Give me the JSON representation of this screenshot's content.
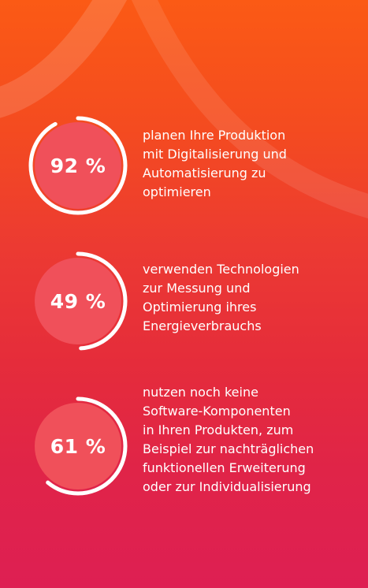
{
  "colors": {
    "ring_fill": "#f0505a",
    "ring_stroke": "#ffffff",
    "text": "#ffffff",
    "background_top": "#fb5a15",
    "background_bottom": "#de1f53"
  },
  "chart_data": {
    "type": "gauge",
    "title": "",
    "unit": "%",
    "items": [
      {
        "value": 92,
        "label": "92 %",
        "lines": [
          "planen Ihre Produktion",
          "mit Digitalisierung und",
          "Automatisierung zu",
          "optimieren"
        ]
      },
      {
        "value": 49,
        "label": "49 %",
        "lines": [
          "verwenden Technologien",
          "zur Messung und",
          "Optimierung ihres",
          "Energieverbrauchs"
        ]
      },
      {
        "value": 61,
        "label": "61 %",
        "lines": [
          "nutzen noch keine",
          "Software-Komponenten",
          "in Ihren Produkten, zum",
          "Beispiel zur nachträglichen",
          "funktionellen Erweiterung",
          "oder zur Individualisierung"
        ]
      }
    ]
  }
}
